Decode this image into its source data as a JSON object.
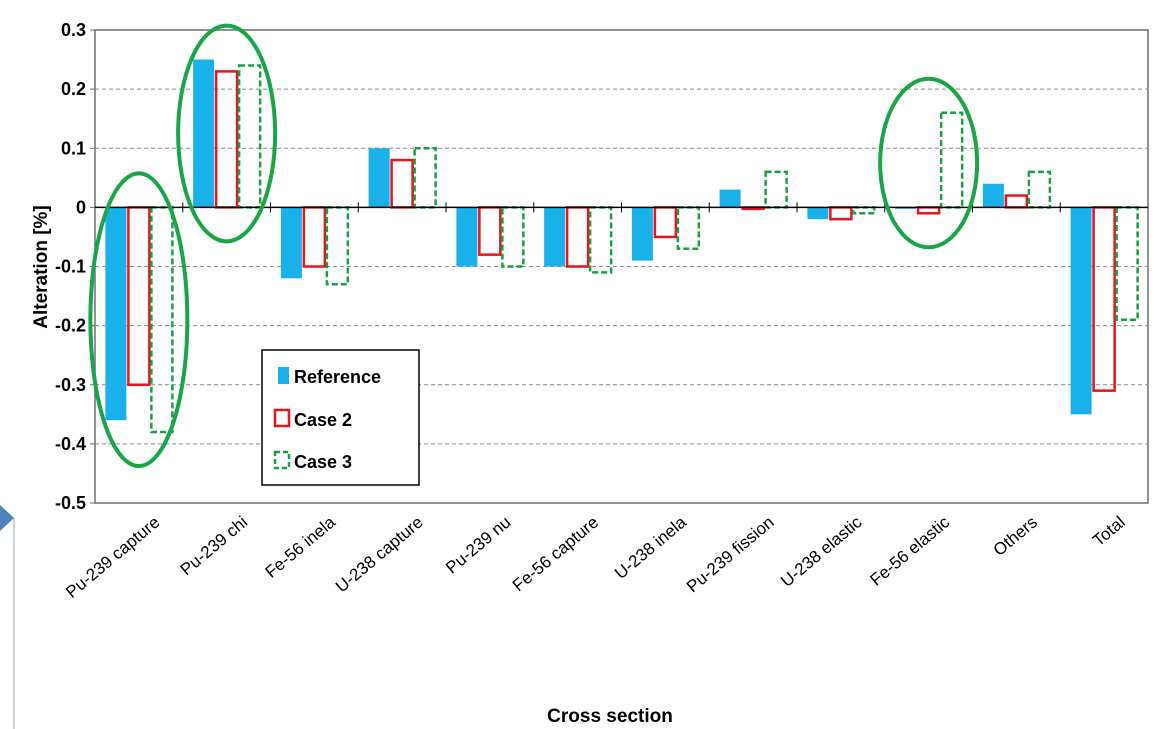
{
  "chart_data": {
    "type": "bar",
    "title": "",
    "xlabel": "Cross section",
    "ylabel": "Alteration [%]",
    "ylim": [
      -0.5,
      0.3
    ],
    "yticks": [
      "0.3",
      "0.2",
      "0.1",
      "0",
      "-0.1",
      "-0.2",
      "-0.3",
      "-0.4",
      "-0.5"
    ],
    "grid": "horizontal dashed",
    "legend_position": "lower-left inside plot",
    "categories": [
      "Pu-239 capture",
      "Pu-239 chi",
      "Fe-56 inela",
      "U-238 capture",
      "Pu-239 nu",
      "Fe-56 capture",
      "U-238 inela",
      "Pu-239 fission",
      "U-238 elastic",
      "Fe-56 elastic",
      "Others",
      "Total"
    ],
    "series": [
      {
        "name": "Reference",
        "style": "solid",
        "color": "#1ab0ea",
        "values": [
          -0.36,
          0.25,
          -0.12,
          0.1,
          -0.1,
          -0.1,
          -0.09,
          0.03,
          -0.02,
          0.0,
          0.04,
          -0.35
        ]
      },
      {
        "name": "Case 2",
        "style": "outline",
        "color": "#e8141b",
        "values": [
          -0.3,
          0.23,
          -0.1,
          0.08,
          -0.08,
          -0.1,
          -0.05,
          0.0,
          -0.02,
          -0.01,
          0.02,
          -0.31
        ]
      },
      {
        "name": "Case 3",
        "style": "dashed-outline",
        "color": "#19a042",
        "values": [
          -0.38,
          0.24,
          -0.13,
          0.1,
          -0.1,
          -0.11,
          -0.07,
          0.06,
          -0.01,
          0.16,
          0.06,
          -0.19
        ]
      }
    ],
    "highlight_color": "#1aa646",
    "highlighted_categories": [
      "Pu-239 capture",
      "Pu-239 chi",
      "Fe-56 elastic"
    ]
  },
  "decoration": {
    "arrow_color": "#4f81bd"
  }
}
